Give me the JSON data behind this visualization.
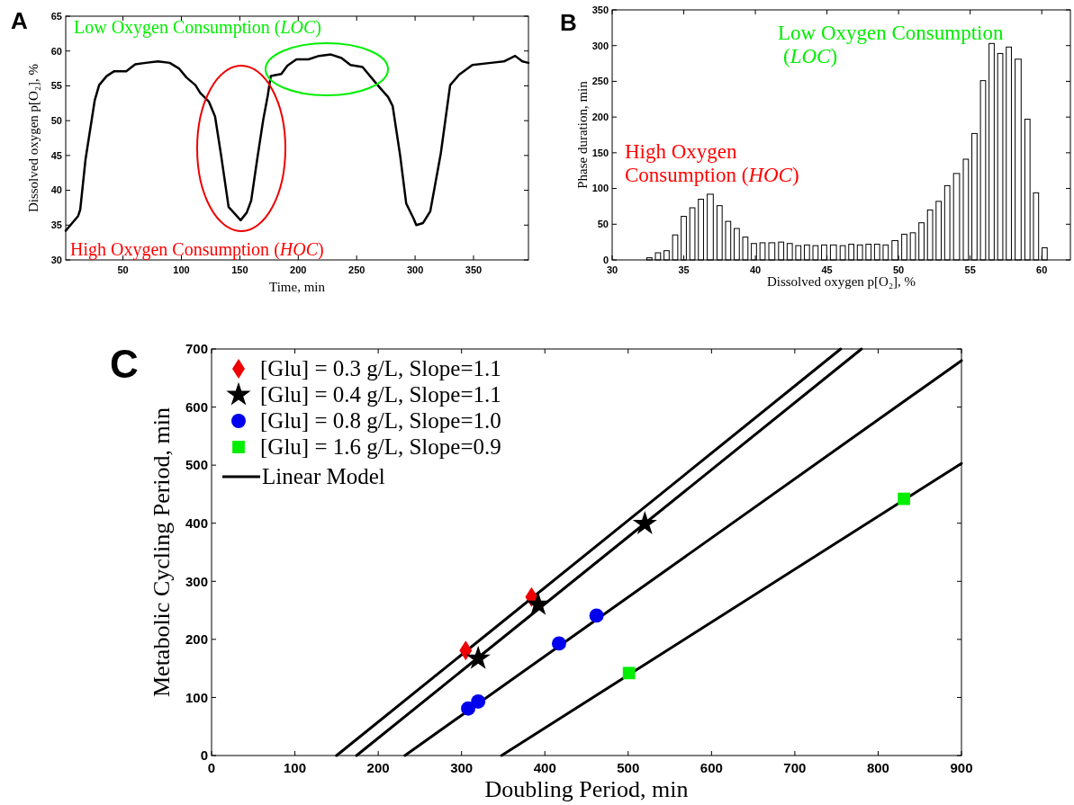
{
  "chart_data": [
    {
      "type": "line",
      "title": "A",
      "xlabel": "Time, min",
      "ylabel": "Dissolved oxygen p[O₂], %",
      "xlim": [
        1,
        397
      ],
      "ylim": [
        30,
        65
      ],
      "xticks": [
        50,
        100,
        150,
        200,
        250,
        300,
        350
      ],
      "yticks": [
        30,
        35,
        40,
        45,
        50,
        55,
        60,
        65
      ],
      "color": "#000000",
      "x": [
        1,
        11.6,
        13.4,
        18,
        25.8,
        29.6,
        36,
        42.5,
        52.8,
        60.5,
        69.5,
        79.9,
        90,
        97.9,
        104.3,
        112,
        116,
        123.6,
        128.8,
        134,
        140.4,
        150.7,
        155.9,
        159.7,
        164.9,
        170,
        173.9,
        176.5,
        185.5,
        190.7,
        198.4,
        208.7,
        217.7,
        228,
        237,
        244.7,
        255,
        267.9,
        276.9,
        280.8,
        287.2,
        292.4,
        298.8,
        301,
        306.8,
        313,
        322,
        330,
        337.7,
        349,
        364.8,
        376,
        385.6,
        391.8,
        397
      ],
      "values": [
        34.2,
        36.3,
        37.2,
        44.5,
        52.9,
        55.1,
        56.4,
        57.1,
        57.1,
        58.1,
        58.3,
        58.5,
        58.3,
        57.5,
        56.2,
        55.1,
        54,
        52.7,
        50.6,
        45,
        37.6,
        35.7,
        36.8,
        38.5,
        44.5,
        50.1,
        53.6,
        56.4,
        56.7,
        57.9,
        58.8,
        58.8,
        59.3,
        59.5,
        59,
        58,
        57.7,
        55.1,
        53.4,
        52.1,
        45,
        38.1,
        35.9,
        35,
        35.3,
        37,
        45.3,
        55.1,
        56.6,
        58,
        58.3,
        58.5,
        59.3,
        58.5,
        58.3
      ],
      "annotations": [
        "Low Oxygen Consumption (LOC)",
        "High Oxygen Consumption (HOC)"
      ]
    },
    {
      "type": "histogram",
      "title": "B",
      "xlabel": "Dissolved oxygen p[O₂], %",
      "ylabel": "Phase duration, min",
      "xlim": [
        30,
        62
      ],
      "ylim": [
        0,
        350
      ],
      "xticks": [
        30,
        35,
        40,
        45,
        50,
        55,
        60
      ],
      "yticks": [
        0,
        50,
        100,
        150,
        200,
        250,
        300,
        350
      ],
      "color": "#ffffff",
      "bins": [
        32.3,
        32.9,
        33.5,
        34.1,
        34.7,
        35.3,
        35.9,
        36.5,
        37.2,
        37.8,
        38.4,
        39.0,
        39.6,
        40.2,
        40.8,
        41.5,
        42.1,
        42.7,
        43.3,
        43.9,
        44.5,
        45.1,
        45.8,
        46.4,
        47.0,
        47.6,
        48.2,
        48.8,
        49.4,
        50.1,
        50.7,
        51.3,
        51.9,
        52.5,
        53.1,
        53.7,
        54.4,
        55.0,
        55.6,
        56.2,
        56.8,
        57.4,
        58.0,
        58.7,
        59.3,
        59.9,
        60.5
      ],
      "values": [
        3,
        10,
        13,
        35,
        61,
        73,
        85,
        92,
        76,
        54,
        44,
        32,
        23,
        24,
        24,
        25,
        23,
        20,
        21,
        20,
        21,
        21,
        20,
        22,
        21,
        22,
        22,
        21,
        27,
        36,
        38,
        52,
        70,
        82,
        104,
        121,
        141,
        177,
        251,
        303,
        289,
        298,
        281,
        197,
        94,
        17
      ],
      "annotations": [
        "Low Oxygen Consumption (LOC)",
        "High Oxygen Consumption (HOC)"
      ]
    },
    {
      "type": "scatter",
      "title": "C",
      "xlabel": "Doubling Period, min",
      "ylabel": "Metabolic Cycling Period, min",
      "xlim": [
        0,
        900
      ],
      "ylim": [
        0,
        700
      ],
      "xticks": [
        0,
        100,
        200,
        300,
        400,
        500,
        600,
        700,
        800,
        900
      ],
      "yticks": [
        0,
        100,
        200,
        300,
        400,
        500,
        600,
        700
      ],
      "legend": "top left",
      "series": [
        {
          "name": "[Glu] = 0.3 g/L, Slope=1.1",
          "color": "#ee0000",
          "marker": "diamond",
          "x": [
            305,
            384
          ],
          "values": [
            181,
            273
          ]
        },
        {
          "name": "[Glu] = 0.4 g/L, Slope=1.1",
          "color": "#000000",
          "marker": "star",
          "x": [
            320,
            392,
            520
          ],
          "values": [
            167,
            260,
            399
          ]
        },
        {
          "name": "[Glu] = 0.8 g/L, Slope=1.0",
          "color": "#0000ee",
          "marker": "circle",
          "x": [
            308,
            320,
            417,
            462
          ],
          "values": [
            81,
            93,
            193,
            241
          ]
        },
        {
          "name": "[Glu] = 1.6 g/L, Slope=0.9",
          "color": "#00ee00",
          "marker": "square",
          "x": [
            501,
            831
          ],
          "values": [
            142,
            442
          ]
        },
        {
          "name": "Linear Model",
          "type": "line",
          "color": "#000000",
          "x": [
            150,
            755
          ],
          "values": [
            0,
            700
          ]
        },
        {
          "type": "line",
          "color": "#000000",
          "x": [
            174,
            780
          ],
          "values": [
            0,
            700
          ]
        },
        {
          "type": "line",
          "color": "#000000",
          "x": [
            232,
            900
          ],
          "values": [
            0,
            680
          ]
        },
        {
          "type": "line",
          "color": "#000000",
          "x": [
            348,
            900
          ],
          "values": [
            0,
            503
          ]
        }
      ]
    }
  ]
}
